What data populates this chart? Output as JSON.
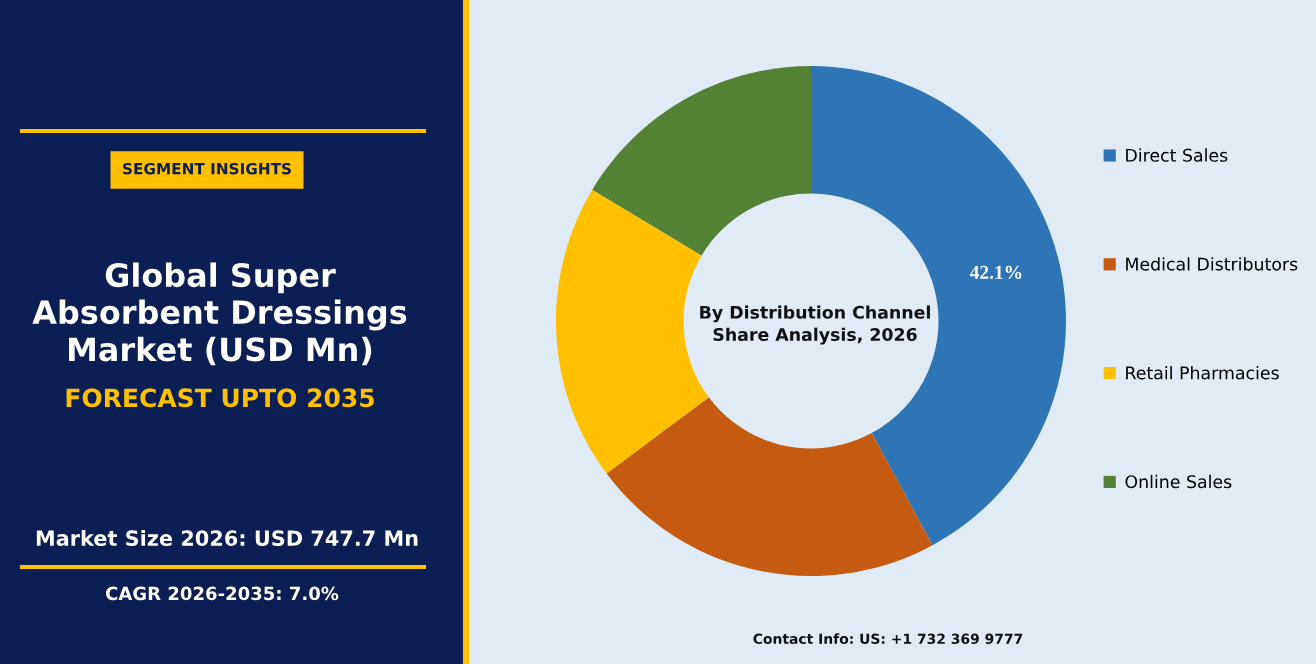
{
  "chart_data": {
    "type": "donut",
    "title": "Global Super\nAbsorbent Dressings\nMarket (USD Mn)",
    "subtitle": "FORECAST UPTO 2035",
    "categories": [
      "Direct Sales",
      "Medical Distributors",
      "Retail Pharmacies",
      "Online Sales"
    ],
    "values": [
      42.1,
      22.7,
      18.8,
      16.4
    ],
    "colors": [
      "#2e75b6",
      "#c55a11",
      "#ffc000",
      "#548235"
    ],
    "value_labels": [
      "42.1%",
      null,
      null,
      null
    ],
    "legend": "right",
    "annotations": [
      "SEGMENT INSIGHTS",
      "By Distribution Channel\nShare Analysis, 2026",
      "Market Size 2026: USD 747.7 Mn",
      "CAGR 2026-2035: 7.0%",
      "Contact Info: US: +1 732 369 9777"
    ]
  }
}
